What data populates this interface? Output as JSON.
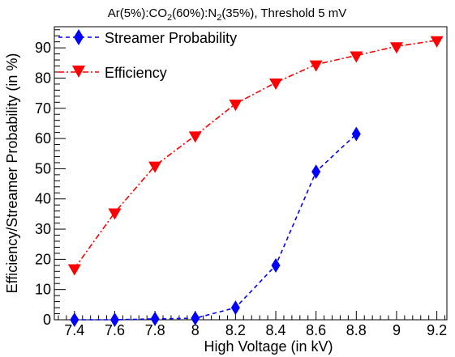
{
  "chart_data": {
    "type": "line",
    "title_parts": {
      "a": "Ar(5%):CO",
      "a_sub": "2",
      "b": "(60%):N",
      "b_sub": "2",
      "c": "(35%), Threshold 5 mV"
    },
    "xlabel": "High Voltage (in kV)",
    "ylabel": "Efficiency/Streamer Probability (in %)",
    "xlim": [
      7.3,
      9.25
    ],
    "ylim": [
      0,
      97
    ],
    "xticks": [
      7.4,
      7.6,
      7.8,
      8.0,
      8.2,
      8.4,
      8.6,
      8.8,
      9.0,
      9.2
    ],
    "xtick_labels": [
      "7.4",
      "7.6",
      "7.8",
      "8",
      "8.2",
      "8.4",
      "8.6",
      "8.8",
      "9",
      "9.2"
    ],
    "yticks": [
      0,
      10,
      20,
      30,
      40,
      50,
      60,
      70,
      80,
      90
    ],
    "ytick_labels": [
      "0",
      "10",
      "20",
      "30",
      "40",
      "50",
      "60",
      "70",
      "80",
      "90"
    ],
    "legend_position": "top-left",
    "series": [
      {
        "name": "Streamer Probability",
        "color": "#0000ff",
        "marker": "diamond",
        "line_style": "dashed",
        "x": [
          7.4,
          7.6,
          7.8,
          8.0,
          8.2,
          8.4,
          8.6,
          8.8
        ],
        "y": [
          0,
          0,
          0.3,
          0.5,
          4,
          18,
          49,
          61.5
        ]
      },
      {
        "name": "Efficiency",
        "color": "#ff0000",
        "marker": "triangle-down",
        "line_style": "dash-dot",
        "x": [
          7.4,
          7.6,
          7.8,
          8.0,
          8.2,
          8.4,
          8.6,
          8.8,
          9.0,
          9.2
        ],
        "y": [
          17,
          35.5,
          51,
          61,
          71.5,
          78.5,
          84.5,
          87.5,
          90.5,
          92.5
        ]
      }
    ]
  }
}
